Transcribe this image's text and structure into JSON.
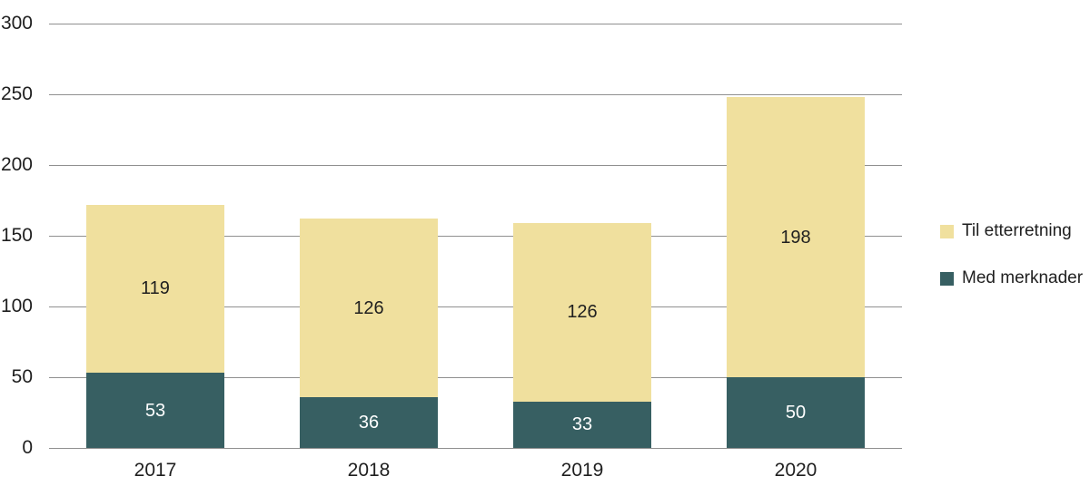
{
  "chart_data": {
    "type": "bar",
    "stacked": true,
    "title": "",
    "xlabel": "",
    "ylabel": "",
    "categories": [
      "2017",
      "2018",
      "2019",
      "2020"
    ],
    "series": [
      {
        "name": "Med merknader",
        "color": "#375f62",
        "label_color": "#ffffff",
        "values": [
          53,
          36,
          33,
          50
        ]
      },
      {
        "name": "Til etterretning",
        "color": "#f0e09e",
        "label_color": "#1f1f1f",
        "values": [
          119,
          126,
          126,
          198
        ]
      }
    ],
    "totals": [
      172,
      162,
      159,
      248
    ],
    "ylim": [
      0,
      300
    ],
    "yticks": [
      0,
      50,
      100,
      150,
      200,
      250,
      300
    ],
    "grid": true,
    "legend_position": "right",
    "legend": [
      {
        "label": "Til etterretning",
        "color": "#f0e09e"
      },
      {
        "label": "Med merknader",
        "color": "#375f62"
      }
    ]
  },
  "styles": {
    "background": "#ffffff",
    "gridline_color": "#909090",
    "text_color": "#1f1f1f"
  }
}
